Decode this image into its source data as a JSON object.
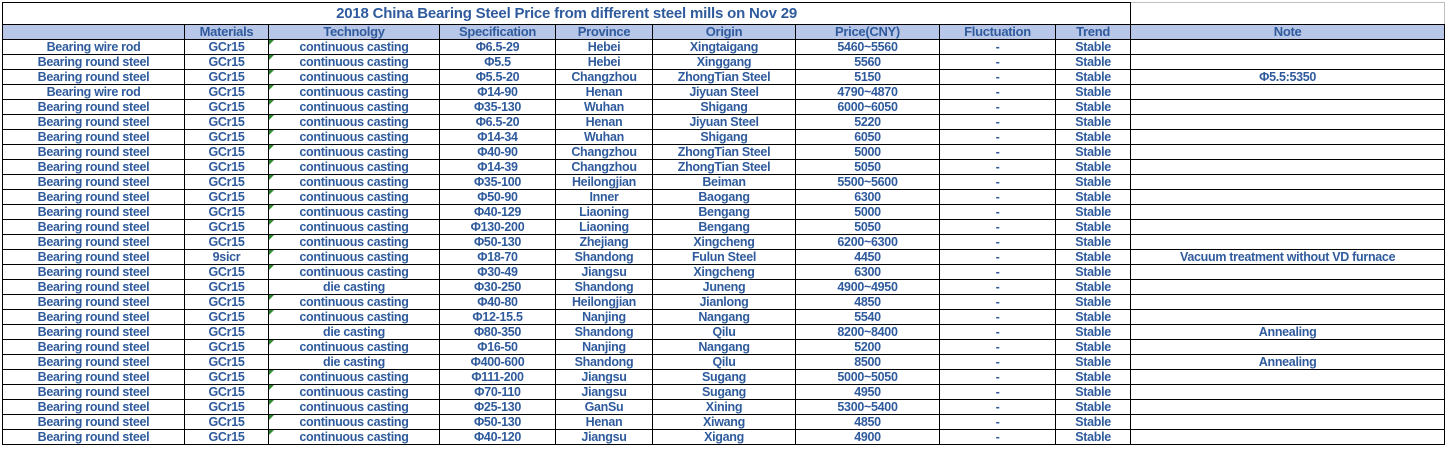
{
  "chart_data": {
    "type": "table",
    "title": "2018 China Bearing Steel Price from different steel mills on Nov 29",
    "columns": [
      "",
      "Materials",
      "Technolgy",
      "Specification",
      "Province",
      "Origin",
      "Price(CNY)",
      "Fluctuation",
      "Trend",
      "Note"
    ],
    "rows": [
      [
        "Bearing wire rod",
        "GCr15",
        "continuous casting",
        "Φ6.5-29",
        "Hebei",
        "Xingtaigang",
        "5460~5560",
        "-",
        "Stable",
        ""
      ],
      [
        "Bearing round steel",
        "GCr15",
        "continuous casting",
        "Φ5.5",
        "Hebei",
        "Xinggang",
        "5560",
        "-",
        "Stable",
        ""
      ],
      [
        "Bearing round steel",
        "GCr15",
        "continuous casting",
        "Φ5.5-20",
        "Changzhou",
        "ZhongTian Steel",
        "5150",
        "-",
        "Stable",
        "Φ5.5:5350"
      ],
      [
        "Bearing wire rod",
        "GCr15",
        "continuous casting",
        "Φ14-90",
        "Henan",
        "Jiyuan Steel",
        "4790~4870",
        "-",
        "Stable",
        ""
      ],
      [
        "Bearing round steel",
        "GCr15",
        "continuous casting",
        "Φ35-130",
        "Wuhan",
        "Shigang",
        "6000~6050",
        "-",
        "Stable",
        ""
      ],
      [
        "Bearing round steel",
        "GCr15",
        "continuous casting",
        "Φ6.5-20",
        "Henan",
        "Jiyuan Steel",
        "5220",
        "-",
        "Stable",
        ""
      ],
      [
        "Bearing round steel",
        "GCr15",
        "continuous casting",
        "Φ14-34",
        "Wuhan",
        "Shigang",
        "6050",
        "-",
        "Stable",
        ""
      ],
      [
        "Bearing round steel",
        "GCr15",
        "continuous casting",
        "Φ40-90",
        "Changzhou",
        "ZhongTian Steel",
        "5000",
        "-",
        "Stable",
        ""
      ],
      [
        "Bearing round steel",
        "GCr15",
        "continuous casting",
        "Φ14-39",
        "Changzhou",
        "ZhongTian Steel",
        "5050",
        "-",
        "Stable",
        ""
      ],
      [
        "Bearing round steel",
        "GCr15",
        "continuous casting",
        "Φ35-100",
        "Heilongjian",
        "Beiman",
        "5500~5600",
        "-",
        "Stable",
        ""
      ],
      [
        "Bearing round steel",
        "GCr15",
        "continuous casting",
        "Φ50-90",
        "Inner",
        "Baogang",
        "6300",
        "-",
        "Stable",
        ""
      ],
      [
        "Bearing round steel",
        "GCr15",
        "continuous casting",
        "Φ40-129",
        "Liaoning",
        "Bengang",
        "5000",
        "-",
        "Stable",
        ""
      ],
      [
        "Bearing round steel",
        "GCr15",
        "continuous casting",
        "Φ130-200",
        "Liaoning",
        "Bengang",
        "5050",
        "-",
        "Stable",
        ""
      ],
      [
        "Bearing round steel",
        "GCr15",
        "continuous casting",
        "Φ50-130",
        "Zhejiang",
        "Xingcheng",
        "6200~6300",
        "-",
        "Stable",
        ""
      ],
      [
        "Bearing round steel",
        "9sicr",
        "continuous casting",
        "Φ18-70",
        "Shandong",
        "Fulun Steel",
        "4450",
        "-",
        "Stable",
        "Vacuum treatment without VD furnace"
      ],
      [
        "Bearing round steel",
        "GCr15",
        "continuous casting",
        "Φ30-49",
        "Jiangsu",
        "Xingcheng",
        "6300",
        "-",
        "Stable",
        ""
      ],
      [
        "Bearing round steel",
        "GCr15",
        "die casting",
        "Φ30-250",
        "Shandong",
        "Juneng",
        "4900~4950",
        "-",
        "Stable",
        ""
      ],
      [
        "Bearing round steel",
        "GCr15",
        "continuous casting",
        "Φ40-80",
        "Heilongjian",
        "Jianlong",
        "4850",
        "-",
        "Stable",
        ""
      ],
      [
        "Bearing round steel",
        "GCr15",
        "continuous casting",
        "Φ12-15.5",
        "Nanjing",
        "Nangang",
        "5540",
        "-",
        "Stable",
        ""
      ],
      [
        "Bearing round steel",
        "GCr15",
        "die casting",
        "Φ80-350",
        "Shandong",
        "Qilu",
        "8200~8400",
        "-",
        "Stable",
        "Annealing"
      ],
      [
        "Bearing round steel",
        "GCr15",
        "continuous casting",
        "Φ16-50",
        "Nanjing",
        "Nangang",
        "5200",
        "-",
        "Stable",
        ""
      ],
      [
        "Bearing round steel",
        "GCr15",
        "die casting",
        "Φ400-600",
        "Shandong",
        "Qilu",
        "8500",
        "-",
        "Stable",
        "Annealing"
      ],
      [
        "Bearing round steel",
        "GCr15",
        "continuous casting",
        "Φ111-200",
        "Jiangsu",
        "Sugang",
        "5000~5050",
        "-",
        "Stable",
        ""
      ],
      [
        "Bearing round steel",
        "GCr15",
        "continuous casting",
        "Φ70-110",
        "Jiangsu",
        "Sugang",
        "4950",
        "-",
        "Stable",
        ""
      ],
      [
        "Bearing round steel",
        "GCr15",
        "continuous casting",
        "Φ25-130",
        "GanSu",
        "Xining",
        "5300~5400",
        "-",
        "Stable",
        ""
      ],
      [
        "Bearing round steel",
        "GCr15",
        "continuous casting",
        "Φ50-130",
        "Henan",
        "Xiwang",
        "4850",
        "-",
        "Stable",
        ""
      ],
      [
        "Bearing round steel",
        "GCr15",
        "continuous casting",
        "Φ40-120",
        "Jiangsu",
        "Xigang",
        "4900",
        "-",
        "Stable",
        ""
      ]
    ],
    "flag_note": "green error-indicator triangle shown on cells whose technology value is continuous casting",
    "layout_hints": "gridded spreadsheet table, header row light blue, all text bold blue, title merged across first 9 columns"
  },
  "colors": {
    "text_blue": "#2F5B9D",
    "header_bg": "#B8C7E8",
    "grid_border": "#000000",
    "light_border": "#BFBFBF",
    "flag_green": "#2E8B2E",
    "background": "#FFFFFF"
  }
}
